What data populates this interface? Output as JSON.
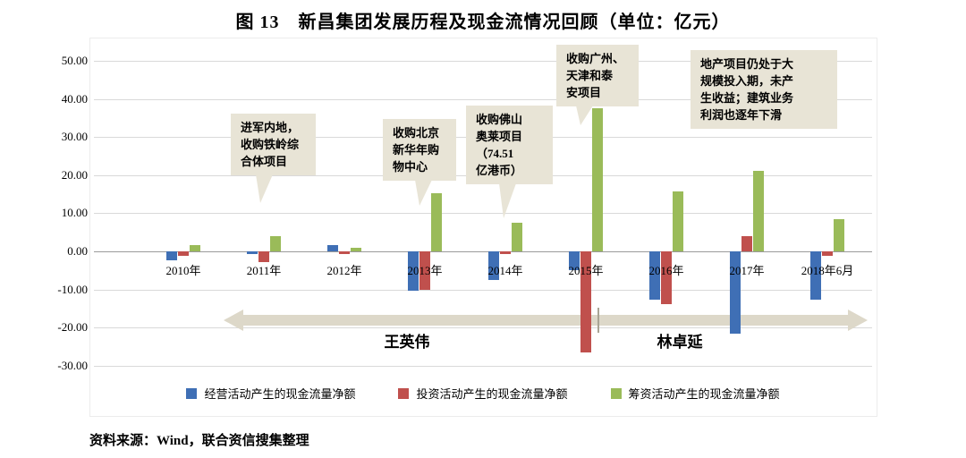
{
  "title": "图 13　新昌集团发展历程及现金流情况回顾（单位：亿元）",
  "source": "资料来源：Wind，联合资信搜集整理",
  "colors": {
    "operating": "#3f6fb5",
    "investing": "#c0504d",
    "financing": "#9abb59",
    "callout_bg": "#e8e4d6",
    "arrow": "#ddd8c9",
    "gridline": "#d9d9d9"
  },
  "chart_data": {
    "type": "bar",
    "categories": [
      "2010年",
      "2011年",
      "2012年",
      "2013年",
      "2014年",
      "2015年",
      "2016年",
      "2017年",
      "2018年6月"
    ],
    "series": [
      {
        "name": "经营活动产生的现金流量净额",
        "color_key": "operating",
        "values": [
          -2.3,
          -0.8,
          1.7,
          -10.3,
          -7.6,
          -4.9,
          -12.7,
          -21.7,
          -12.6
        ]
      },
      {
        "name": "投资活动产生的现金流量净额",
        "color_key": "investing",
        "values": [
          -1.2,
          -2.8,
          -0.7,
          -10.2,
          -0.6,
          -26.6,
          -13.8,
          4.0,
          -1.1
        ]
      },
      {
        "name": "筹资活动产生的现金流量净额",
        "color_key": "financing",
        "values": [
          1.6,
          4.0,
          0.9,
          15.2,
          7.4,
          37.6,
          15.7,
          21.1,
          8.4
        ]
      }
    ],
    "ylim": [
      -30,
      50
    ],
    "ytick_step": 10,
    "ytick_labels": [
      "50.00",
      "40.00",
      "30.00",
      "20.00",
      "10.00",
      "0.00",
      "-10.00",
      "-20.00",
      "-30.00"
    ],
    "grid": true,
    "legend_position": "bottom"
  },
  "annotations": {
    "callouts": [
      {
        "lines": [
          "进军内地，",
          "收购铁岭综",
          "合体项目"
        ]
      },
      {
        "lines": [
          "收购北京",
          "新华年购",
          "物中心"
        ]
      },
      {
        "lines": [
          "收购佛山",
          "奥莱项目",
          "（74.51",
          "亿港币）"
        ]
      },
      {
        "lines": [
          "收购广州、",
          "天津和泰",
          "安项目"
        ]
      },
      {
        "lines": [
          "地产项目仍处于大",
          "规模投入期，未产",
          "生收益；建筑业务",
          "利润也逐年下滑"
        ]
      }
    ],
    "timeline": {
      "left_label": "王英伟",
      "right_label": "林卓延"
    }
  }
}
